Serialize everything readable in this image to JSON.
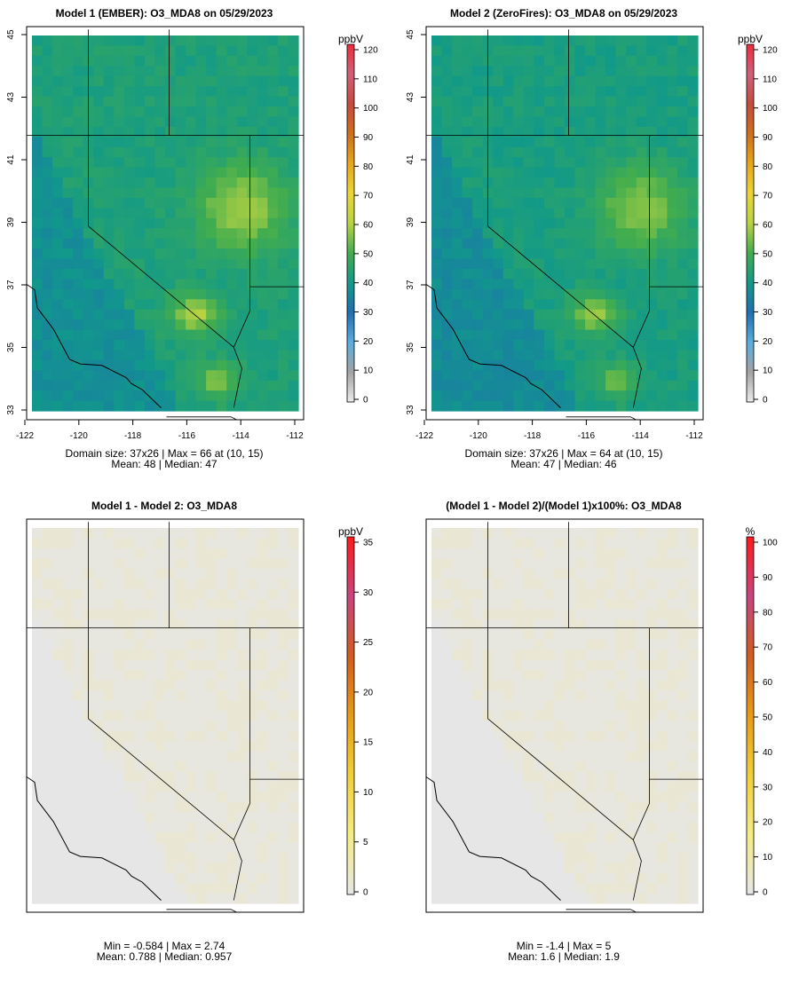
{
  "chart_data": [
    {
      "type": "heatmap",
      "title": "Model 1 (EMBER): O3_MDA8 on 05/29/2023",
      "colorbar": {
        "unit": "ppbV",
        "ticks": [
          "0",
          "10",
          "20",
          "30",
          "40",
          "50",
          "60",
          "70",
          "80",
          "90",
          "100",
          "110",
          "120"
        ],
        "min": 0,
        "max": 120,
        "scale": "abs"
      },
      "x_ticks": [
        "-122",
        "-120",
        "-118",
        "-116",
        "-114",
        "-112"
      ],
      "y_ticks": [
        "33",
        "35",
        "37",
        "39",
        "41",
        "43",
        "45"
      ],
      "show_axes": true,
      "stats": [
        "Domain size: 37x26 | Max = 66 at (10, 15)",
        "Mean: 48 |  Median: 47"
      ],
      "field": {
        "kind": "ozone",
        "base": 47,
        "max": 66
      },
      "summary": {
        "max": 66,
        "mean": 48,
        "median": 47
      }
    },
    {
      "type": "heatmap",
      "title": "Model 2 (ZeroFires): O3_MDA8 on 05/29/2023",
      "colorbar": {
        "unit": "ppbV",
        "ticks": [
          "0",
          "10",
          "20",
          "30",
          "40",
          "50",
          "60",
          "70",
          "80",
          "90",
          "100",
          "110",
          "120"
        ],
        "min": 0,
        "max": 120,
        "scale": "abs"
      },
      "x_ticks": [
        "-122",
        "-120",
        "-118",
        "-116",
        "-114",
        "-112"
      ],
      "y_ticks": [
        "33",
        "35",
        "37",
        "39",
        "41",
        "43",
        "45"
      ],
      "show_axes": true,
      "stats": [
        "Domain size: 37x26 | Max = 64 at (10, 15)",
        "Mean: 47 |  Median: 46"
      ],
      "field": {
        "kind": "ozone",
        "base": 46,
        "max": 64
      },
      "summary": {
        "max": 64,
        "mean": 47,
        "median": 46
      }
    },
    {
      "type": "heatmap",
      "title": "Model 1 - Model 2: O3_MDA8",
      "colorbar": {
        "unit": "ppbV",
        "ticks": [
          "0",
          "5",
          "10",
          "15",
          "20",
          "25",
          "30",
          "35"
        ],
        "min": 0,
        "max": 35,
        "scale": "diff"
      },
      "x_ticks": [],
      "y_ticks": [],
      "show_axes": false,
      "stats": [
        "Min = -0.584 | Max = 2.74",
        "Mean: 0.788 |  Median: 0.957"
      ],
      "field": {
        "kind": "diff",
        "min": -0.584,
        "max": 2.74
      },
      "summary": {
        "min": -0.584,
        "max": 2.74,
        "mean": 0.788,
        "median": 0.957
      }
    },
    {
      "type": "heatmap",
      "title": "(Model 1 - Model 2)/(Model 1)x100%: O3_MDA8",
      "colorbar": {
        "unit": "%",
        "ticks": [
          "0",
          "10",
          "20",
          "30",
          "40",
          "50",
          "60",
          "70",
          "80",
          "90",
          "100"
        ],
        "min": 0,
        "max": 100,
        "scale": "diff"
      },
      "x_ticks": [],
      "y_ticks": [],
      "show_axes": false,
      "stats": [
        "Min = -1.4 | Max = 5",
        "Mean: 1.6 |  Median: 1.9"
      ],
      "field": {
        "kind": "pct",
        "min": -1.4,
        "max": 5
      },
      "summary": {
        "min": -1.4,
        "max": 5,
        "mean": 1.6,
        "median": 1.9
      }
    }
  ],
  "colors": {
    "abs_scale": [
      "#ebebeb",
      "#a3a3a3",
      "#58aee0",
      "#1f6fb2",
      "#11998a",
      "#42ad4e",
      "#b9d343",
      "#ecd536",
      "#e8a51a",
      "#cf6f1a",
      "#c64a3c",
      "#d1607a",
      "#ee2b3b"
    ],
    "diff_scale": [
      "#e6e6e6",
      "#f5ec82",
      "#f2cf3a",
      "#e99a16",
      "#d25c1e",
      "#c9447f",
      "#ff1a1a"
    ],
    "frame": "#000000"
  }
}
